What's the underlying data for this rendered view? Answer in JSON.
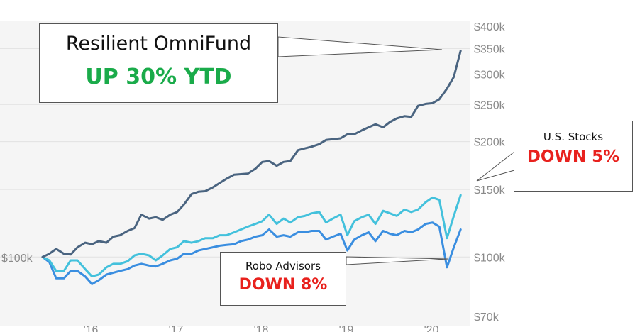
{
  "chart_data": {
    "type": "line",
    "y_scale": "log",
    "ylim": [
      70000,
      400000
    ],
    "y_ticks": [
      {
        "value": 400000,
        "label": "$400k"
      },
      {
        "value": 350000,
        "label": "$350k"
      },
      {
        "value": 300000,
        "label": "$300k"
      },
      {
        "value": 250000,
        "label": "$250k"
      },
      {
        "value": 200000,
        "label": "$200k"
      },
      {
        "value": 150000,
        "label": "$150k"
      },
      {
        "value": 100000,
        "label": "$100k"
      },
      {
        "value": 70000,
        "label": "$70k"
      }
    ],
    "start_label": "$100k",
    "xlim": [
      2015.4,
      2020.45
    ],
    "x_ticks": [
      {
        "value": 2016,
        "label": "'16"
      },
      {
        "value": 2017,
        "label": "'17"
      },
      {
        "value": 2018,
        "label": "'18"
      },
      {
        "value": 2019,
        "label": "'19"
      },
      {
        "value": 2020,
        "label": "'20"
      }
    ],
    "grid": true,
    "series": [
      {
        "name": "Resilient OmniFund",
        "color": "#4a6480",
        "x": [
          2015.42,
          2015.5,
          2015.58,
          2015.67,
          2015.75,
          2015.83,
          2015.92,
          2016.0,
          2016.08,
          2016.17,
          2016.25,
          2016.33,
          2016.42,
          2016.5,
          2016.58,
          2016.67,
          2016.75,
          2016.83,
          2016.92,
          2017.0,
          2017.08,
          2017.17,
          2017.25,
          2017.33,
          2017.42,
          2017.5,
          2017.58,
          2017.67,
          2017.75,
          2017.83,
          2017.92,
          2018.0,
          2018.08,
          2018.17,
          2018.25,
          2018.33,
          2018.42,
          2018.5,
          2018.58,
          2018.67,
          2018.75,
          2018.83,
          2018.92,
          2019.0,
          2019.08,
          2019.17,
          2019.25,
          2019.33,
          2019.42,
          2019.5,
          2019.58,
          2019.67,
          2019.75,
          2019.83,
          2019.92,
          2020.0,
          2020.08,
          2020.17,
          2020.25,
          2020.33
        ],
        "values": [
          100000,
          102000,
          105000,
          102000,
          101500,
          106000,
          109000,
          108000,
          110000,
          109000,
          113000,
          114000,
          117000,
          119000,
          129000,
          126000,
          127000,
          125000,
          129000,
          131000,
          137000,
          146000,
          148000,
          148500,
          152000,
          156000,
          160000,
          164000,
          164500,
          165000,
          170000,
          177000,
          178000,
          173000,
          177000,
          178000,
          190000,
          192000,
          194000,
          197000,
          202000,
          203000,
          204000,
          209000,
          209000,
          214000,
          218000,
          222000,
          218000,
          225000,
          230000,
          233000,
          232000,
          248000,
          251000,
          252000,
          258000,
          275000,
          295000,
          345000
        ]
      },
      {
        "name": "U.S. Stocks",
        "color": "#43c1dc",
        "x": [
          2015.42,
          2015.5,
          2015.58,
          2015.67,
          2015.75,
          2015.83,
          2015.92,
          2016.0,
          2016.08,
          2016.17,
          2016.25,
          2016.33,
          2016.42,
          2016.5,
          2016.58,
          2016.67,
          2016.75,
          2016.83,
          2016.92,
          2017.0,
          2017.08,
          2017.17,
          2017.25,
          2017.33,
          2017.42,
          2017.5,
          2017.58,
          2017.67,
          2017.75,
          2017.83,
          2017.92,
          2018.0,
          2018.08,
          2018.17,
          2018.25,
          2018.33,
          2018.42,
          2018.5,
          2018.58,
          2018.67,
          2018.75,
          2018.83,
          2018.92,
          2019.0,
          2019.08,
          2019.17,
          2019.25,
          2019.33,
          2019.42,
          2019.5,
          2019.58,
          2019.67,
          2019.75,
          2019.83,
          2019.92,
          2020.0,
          2020.08,
          2020.17,
          2020.25,
          2020.33
        ],
        "values": [
          100000,
          98000,
          92000,
          92000,
          98000,
          98000,
          93000,
          89000,
          90000,
          94000,
          96000,
          96000,
          97500,
          101000,
          102000,
          101000,
          98000,
          101000,
          105000,
          106000,
          110000,
          109000,
          110000,
          112000,
          112000,
          114000,
          114000,
          116000,
          118000,
          120000,
          122000,
          124000,
          129000,
          122000,
          126000,
          123000,
          127000,
          128000,
          130000,
          131000,
          123000,
          126000,
          129000,
          114000,
          124000,
          127000,
          129000,
          122000,
          132000,
          130000,
          128000,
          133000,
          131000,
          133000,
          139000,
          143000,
          141000,
          112000,
          128000,
          145000
        ]
      },
      {
        "name": "Robo Advisors",
        "color": "#3a8ee0",
        "x": [
          2015.42,
          2015.5,
          2015.58,
          2015.67,
          2015.75,
          2015.83,
          2015.92,
          2016.0,
          2016.08,
          2016.17,
          2016.25,
          2016.33,
          2016.42,
          2016.5,
          2016.58,
          2016.67,
          2016.75,
          2016.83,
          2016.92,
          2017.0,
          2017.08,
          2017.17,
          2017.25,
          2017.33,
          2017.42,
          2017.5,
          2017.58,
          2017.67,
          2017.75,
          2017.83,
          2017.92,
          2018.0,
          2018.08,
          2018.17,
          2018.25,
          2018.33,
          2018.42,
          2018.5,
          2018.58,
          2018.67,
          2018.75,
          2018.83,
          2018.92,
          2019.0,
          2019.08,
          2019.17,
          2019.25,
          2019.33,
          2019.42,
          2019.5,
          2019.58,
          2019.67,
          2019.75,
          2019.83,
          2019.92,
          2020.0,
          2020.08,
          2020.17,
          2020.25,
          2020.33
        ],
        "values": [
          100000,
          97000,
          88000,
          88000,
          92000,
          92000,
          89000,
          85000,
          87000,
          90000,
          91000,
          92000,
          93000,
          95000,
          96000,
          95000,
          94500,
          96000,
          98000,
          99000,
          102000,
          102000,
          104000,
          105000,
          106000,
          107000,
          107500,
          108000,
          110000,
          111000,
          113000,
          114000,
          118000,
          113000,
          114000,
          113000,
          116000,
          116000,
          117000,
          117000,
          111000,
          113000,
          115000,
          104000,
          111000,
          114000,
          116000,
          110000,
          117000,
          115000,
          114000,
          117000,
          116000,
          118000,
          122000,
          123000,
          120000,
          94000,
          106000,
          118000
        ]
      }
    ]
  },
  "callouts": {
    "omnifund": {
      "title": "Resilient OmniFund",
      "performance": "UP 30% YTD",
      "color": "#1aab4a"
    },
    "us_stocks": {
      "title": "U.S. Stocks",
      "performance": "DOWN 5%",
      "color": "#e8211d"
    },
    "robo": {
      "title": "Robo Advisors",
      "performance": "DOWN 8%",
      "color": "#e8211d"
    }
  }
}
